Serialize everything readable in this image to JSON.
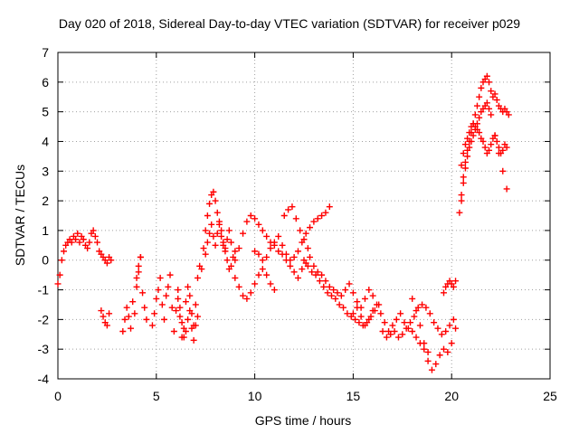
{
  "chart_data": {
    "type": "scatter",
    "title": "Day 020 of 2018, Sidereal Day-to-day VTEC variation (SDTVAR) for receiver p029",
    "xlabel": "GPS time / hours",
    "ylabel": "SDTVAR / TECUs",
    "xlim": [
      0,
      25
    ],
    "ylim": [
      -4,
      7
    ],
    "xticks": [
      0,
      5,
      10,
      15,
      20,
      25
    ],
    "yticks": [
      -4,
      -3,
      -2,
      -1,
      0,
      1,
      2,
      3,
      4,
      5,
      6,
      7
    ],
    "grid": true,
    "marker": "+",
    "series": [
      {
        "name": "SDTVAR",
        "color": "#ff0000",
        "x": [
          0.0,
          0.1,
          0.2,
          0.3,
          0.4,
          0.5,
          0.6,
          0.7,
          0.8,
          0.9,
          1.0,
          1.1,
          1.2,
          1.3,
          1.4,
          1.5,
          1.6,
          1.7,
          1.8,
          1.9,
          2.0,
          2.1,
          2.2,
          2.3,
          2.4,
          2.5,
          2.6,
          2.7,
          2.2,
          2.3,
          2.4,
          2.5,
          2.6,
          3.3,
          3.4,
          3.5,
          3.6,
          3.7,
          3.8,
          3.9,
          4.0,
          4.1,
          4.2,
          4.3,
          4.4,
          4.5,
          4.0,
          4.1,
          4.2,
          4.8,
          4.9,
          5.0,
          5.1,
          5.2,
          5.3,
          5.4,
          5.5,
          5.6,
          5.7,
          5.8,
          5.9,
          6.0,
          6.1,
          6.2,
          6.3,
          6.4,
          6.5,
          6.6,
          6.7,
          6.8,
          6.9,
          7.0,
          7.1,
          7.2,
          6.1,
          6.2,
          6.3,
          6.4,
          6.5,
          6.6,
          6.7,
          6.8,
          6.9,
          7.0,
          7.1,
          7.3,
          7.4,
          7.5,
          7.6,
          7.7,
          7.8,
          7.9,
          8.0,
          8.1,
          8.2,
          8.3,
          8.4,
          8.5,
          8.6,
          8.7,
          8.8,
          8.9,
          9.0,
          7.5,
          7.6,
          7.7,
          7.8,
          7.9,
          8.0,
          8.1,
          8.2,
          8.3,
          8.4,
          8.5,
          8.6,
          8.7,
          8.8,
          9.0,
          9.2,
          9.4,
          9.6,
          9.8,
          10.0,
          10.2,
          10.4,
          10.6,
          10.8,
          11.0,
          11.2,
          11.4,
          11.6,
          11.8,
          12.0,
          9.0,
          9.2,
          9.4,
          9.6,
          9.8,
          10.0,
          10.2,
          10.4,
          10.6,
          10.8,
          11.0,
          10.0,
          10.2,
          10.4,
          10.6,
          10.8,
          11.0,
          11.2,
          11.4,
          11.6,
          11.8,
          12.0,
          12.2,
          12.4,
          12.6,
          12.8,
          13.0,
          13.2,
          13.4,
          13.6,
          13.8,
          11.5,
          11.7,
          11.9,
          12.1,
          12.3,
          12.5,
          12.7,
          12.2,
          12.4,
          12.6,
          12.8,
          13.0,
          13.2,
          13.4,
          13.6,
          13.8,
          14.0,
          14.2,
          14.4,
          14.6,
          14.8,
          15.0,
          15.2,
          15.4,
          15.6,
          15.8,
          16.0,
          12.5,
          12.7,
          12.9,
          13.1,
          13.3,
          13.5,
          13.7,
          13.9,
          14.1,
          14.3,
          14.5,
          14.7,
          14.9,
          15.1,
          15.3,
          15.5,
          15.7,
          15.9,
          16.1,
          16.3,
          15.0,
          15.2,
          15.4,
          15.6,
          15.8,
          16.0,
          16.2,
          16.4,
          16.6,
          16.8,
          17.0,
          17.2,
          17.4,
          17.6,
          17.8,
          18.0,
          18.2,
          18.4,
          18.6,
          18.8,
          16.5,
          16.7,
          16.9,
          17.1,
          17.3,
          17.5,
          17.7,
          17.9,
          18.1,
          18.3,
          18.5,
          18.7,
          18.9,
          19.1,
          19.3,
          19.5,
          19.7,
          19.9,
          20.1,
          18.0,
          18.2,
          18.4,
          18.6,
          18.8,
          19.0,
          19.2,
          19.4,
          19.6,
          19.8,
          20.0,
          20.2,
          19.6,
          19.7,
          19.8,
          19.9,
          20.0,
          20.1,
          20.2,
          20.4,
          20.5,
          20.6,
          20.7,
          20.8,
          20.9,
          21.0,
          21.1,
          21.2,
          21.3,
          21.4,
          21.5,
          21.6,
          21.7,
          21.8,
          21.9,
          22.0,
          22.1,
          22.2,
          22.3,
          22.4,
          22.5,
          22.6,
          22.7,
          22.8,
          22.9,
          20.5,
          20.6,
          20.7,
          20.8,
          20.9,
          21.0,
          21.1,
          21.2,
          21.3,
          21.4,
          21.5,
          21.6,
          21.7,
          21.8,
          21.9,
          22.0,
          22.1,
          22.2,
          22.3,
          22.4,
          22.5,
          22.6,
          22.7,
          22.8,
          20.5,
          20.6,
          20.7,
          20.8,
          20.9,
          21.0,
          21.1,
          21.2,
          21.3,
          21.4,
          21.5,
          21.6,
          21.7,
          21.8,
          21.9,
          22.0,
          22.2,
          22.4,
          22.6,
          22.8
        ],
        "y": [
          -0.8,
          -0.5,
          0.0,
          0.3,
          0.5,
          0.6,
          0.7,
          0.6,
          0.8,
          0.7,
          0.9,
          0.6,
          0.8,
          0.7,
          0.5,
          0.4,
          0.6,
          0.9,
          1.0,
          0.8,
          0.6,
          0.3,
          0.2,
          0.1,
          0.0,
          -0.1,
          0.1,
          0.0,
          -1.7,
          -1.9,
          -2.1,
          -2.2,
          -1.8,
          -2.4,
          -2.0,
          -1.6,
          -1.9,
          -2.3,
          -1.4,
          -1.8,
          -0.9,
          -0.4,
          0.1,
          -1.1,
          -1.6,
          -2.0,
          -0.6,
          -0.2,
          0.1,
          -2.2,
          -1.8,
          -1.3,
          -1.0,
          -0.6,
          -1.5,
          -2.0,
          -1.2,
          -0.9,
          -0.5,
          -1.6,
          -2.4,
          -1.7,
          -1.3,
          -1.9,
          -2.6,
          -2.3,
          -1.4,
          -0.9,
          -1.2,
          -1.8,
          -2.2,
          -1.5,
          -0.6,
          -0.2,
          -1.0,
          -1.6,
          -2.1,
          -2.6,
          -2.4,
          -2.0,
          -1.7,
          -2.3,
          -2.7,
          -2.2,
          -1.9,
          -0.3,
          0.4,
          1.0,
          1.5,
          1.9,
          2.2,
          2.3,
          2.0,
          1.6,
          1.2,
          0.8,
          0.5,
          0.3,
          0.0,
          -0.3,
          -0.2,
          0.1,
          0.3,
          0.2,
          0.6,
          0.9,
          1.2,
          0.8,
          0.5,
          0.9,
          1.3,
          1.0,
          0.6,
          0.4,
          0.7,
          1.0,
          0.6,
          0.0,
          0.4,
          0.9,
          1.3,
          1.5,
          1.4,
          1.2,
          1.0,
          0.8,
          0.6,
          0.5,
          0.3,
          0.2,
          0.0,
          -0.2,
          -0.4,
          -0.6,
          -0.9,
          -1.2,
          -1.3,
          -1.1,
          -0.8,
          -0.5,
          -0.3,
          -0.5,
          -0.8,
          -1.0,
          0.3,
          0.2,
          0.0,
          0.1,
          0.4,
          0.6,
          0.8,
          0.5,
          0.2,
          0.0,
          0.1,
          0.3,
          0.6,
          0.9,
          1.1,
          1.3,
          1.4,
          1.5,
          1.6,
          1.8,
          1.5,
          1.7,
          1.8,
          1.4,
          1.0,
          0.7,
          0.4,
          -0.6,
          -0.3,
          -0.1,
          0.1,
          -0.2,
          -0.4,
          -0.5,
          -0.7,
          -0.9,
          -1.0,
          -1.1,
          -1.2,
          -1.0,
          -0.8,
          -1.1,
          -1.4,
          -1.6,
          -1.3,
          -1.0,
          -1.2,
          0.0,
          -0.2,
          -0.4,
          -0.5,
          -0.7,
          -0.9,
          -1.1,
          -1.2,
          -1.3,
          -1.5,
          -1.6,
          -1.8,
          -1.9,
          -2.0,
          -2.1,
          -2.2,
          -2.1,
          -1.9,
          -1.7,
          -1.5,
          -1.8,
          -1.6,
          -1.9,
          -2.2,
          -2.0,
          -1.7,
          -1.5,
          -1.8,
          -2.1,
          -2.4,
          -2.2,
          -2.0,
          -1.8,
          -2.1,
          -2.3,
          -2.4,
          -2.6,
          -2.8,
          -3.0,
          -3.1,
          -2.4,
          -2.6,
          -2.5,
          -2.4,
          -2.6,
          -2.5,
          -2.3,
          -2.1,
          -1.9,
          -1.6,
          -1.5,
          -1.6,
          -1.8,
          -2.1,
          -2.3,
          -2.5,
          -2.4,
          -2.2,
          -2.0,
          -1.3,
          -1.7,
          -2.2,
          -2.8,
          -3.4,
          -3.7,
          -3.5,
          -3.2,
          -3.0,
          -3.1,
          -2.8,
          -2.3,
          -1.1,
          -0.9,
          -0.8,
          -0.7,
          -0.8,
          -0.9,
          -0.7,
          1.6,
          2.2,
          2.8,
          3.3,
          3.7,
          4.0,
          4.3,
          4.6,
          4.9,
          5.2,
          5.5,
          5.8,
          6.0,
          6.1,
          6.2,
          6.0,
          5.7,
          5.5,
          5.6,
          5.4,
          5.2,
          5.1,
          5.0,
          5.1,
          5.0,
          4.9,
          3.2,
          3.6,
          3.9,
          4.1,
          4.3,
          4.5,
          4.6,
          4.5,
          4.4,
          4.3,
          4.1,
          4.0,
          3.8,
          3.6,
          3.7,
          3.9,
          4.1,
          4.2,
          4.0,
          3.8,
          3.6,
          3.7,
          3.9,
          3.8,
          2.0,
          2.6,
          3.1,
          3.5,
          3.8,
          4.0,
          4.2,
          4.4,
          4.6,
          4.8,
          5.0,
          5.1,
          5.2,
          5.3,
          5.1,
          4.9,
          4.2,
          3.6,
          3.0,
          2.4
        ]
      }
    ]
  }
}
